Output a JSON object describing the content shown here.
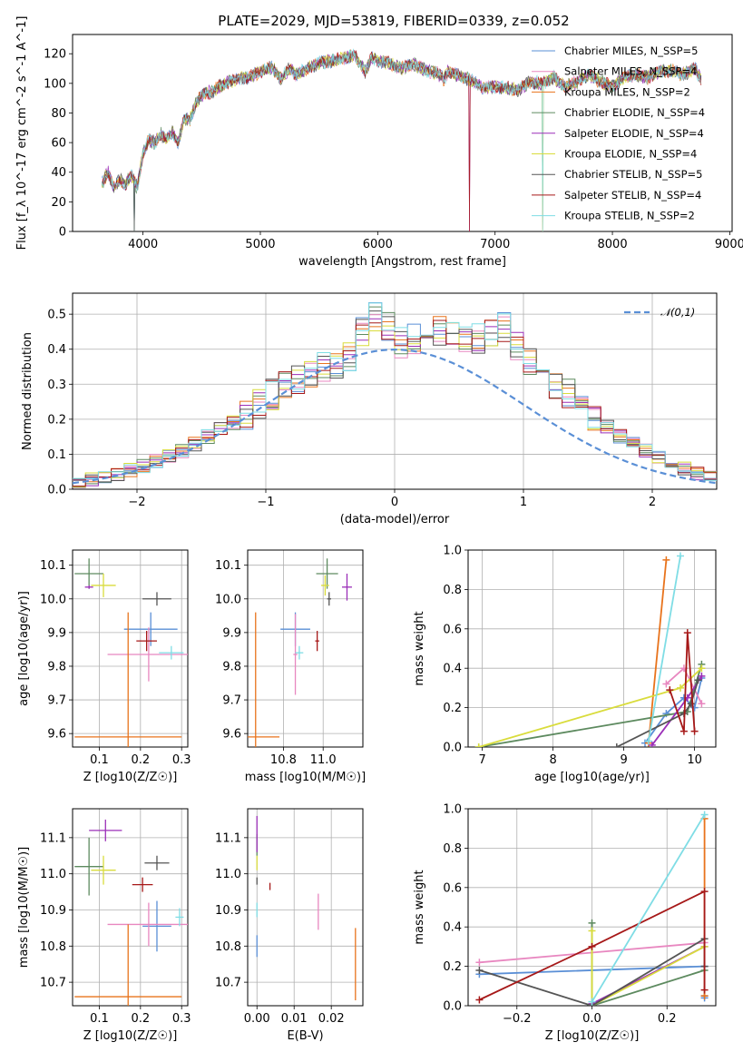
{
  "figure": {
    "title": "PLATE=2029, MJD=53819, FIBERID=0339, z=0.052"
  },
  "series_colors": {
    "Chabrier MILES": "#5a8fd6",
    "Salpeter MILES": "#e887c0",
    "Kroupa MILES": "#e8731c",
    "Chabrier ELODIE": "#5d8a5f",
    "Salpeter ELODIE": "#9b2fb8",
    "Kroupa ELODIE": "#d9dc3c",
    "Chabrier STELIB": "#555555",
    "Salpeter STELIB": "#a61818",
    "Kroupa STELIB": "#7fdde5"
  },
  "chart_data": [
    {
      "id": "spectrum",
      "type": "line",
      "title": "PLATE=2029, MJD=53819, FIBERID=0339, z=0.052",
      "xlabel": "wavelength [Angstrom, rest frame]",
      "ylabel": "Flux [f_λ 10^-17 erg cm^-2 s^-1 A^-1]",
      "xlim": [
        3400,
        9020
      ],
      "ylim": [
        0,
        133
      ],
      "xticks": [
        4000,
        5000,
        6000,
        7000,
        8000,
        9000
      ],
      "yticks": [
        0,
        20,
        40,
        60,
        80,
        100,
        120
      ],
      "grid": false,
      "legend_position": "top-right",
      "legend": [
        {
          "label": "Chabrier MILES, N_SSP=5"
        },
        {
          "label": "Salpeter MILES, N_SSP=4"
        },
        {
          "label": "Kroupa MILES, N_SSP=2"
        },
        {
          "label": "Chabrier ELODIE, N_SSP=4"
        },
        {
          "label": "Salpeter ELODIE, N_SSP=4"
        },
        {
          "label": "Kroupa ELODIE, N_SSP=4"
        },
        {
          "label": "Chabrier STELIB, N_SSP=5"
        },
        {
          "label": "Salpeter STELIB, N_SSP=4"
        },
        {
          "label": "Kroupa STELIB, N_SSP=2"
        }
      ],
      "continuum": {
        "x": [
          3650,
          3700,
          3750,
          3800,
          3850,
          3900,
          3950,
          4000,
          4050,
          4100,
          4150,
          4200,
          4250,
          4300,
          4350,
          4400,
          4450,
          4500,
          4600,
          4700,
          4800,
          4900,
          5000,
          5100,
          5175,
          5250,
          5300,
          5400,
          5500,
          5600,
          5700,
          5800,
          5893,
          5950,
          6000,
          6100,
          6200,
          6300,
          6400,
          6500,
          6563,
          6600,
          6700,
          6800,
          6900,
          7000,
          7100,
          7200,
          7300,
          7400,
          7500,
          7600,
          7700,
          7800,
          7900,
          8000,
          8100,
          8200,
          8300,
          8400,
          8500,
          8600,
          8700,
          8760
        ],
        "y": [
          32,
          40,
          30,
          35,
          32,
          38,
          30,
          52,
          62,
          60,
          66,
          62,
          67,
          60,
          76,
          76,
          86,
          92,
          95,
          100,
          103,
          104,
          108,
          111,
          103,
          110,
          106,
          110,
          114,
          115,
          117,
          119,
          108,
          117,
          115,
          114,
          110,
          113,
          109,
          107,
          103,
          108,
          105,
          102,
          97,
          98,
          97,
          96,
          101,
          100,
          104,
          98,
          101,
          106,
          101,
          98,
          104,
          106,
          104,
          108,
          109,
          106,
          110,
          103
        ]
      },
      "dips": [
        {
          "x": 3925,
          "y": 0
        },
        {
          "x": 6780,
          "y": 0
        },
        {
          "x": 7405,
          "y": 0
        }
      ]
    },
    {
      "id": "residuals",
      "type": "line",
      "xlabel": "(data-model)/error",
      "ylabel": "Normed distribution",
      "xlim": [
        -2.5,
        2.5
      ],
      "ylim": [
        0,
        0.56
      ],
      "xticks": [
        -2,
        -1,
        0,
        1,
        2
      ],
      "yticks": [
        0.0,
        0.1,
        0.2,
        0.3,
        0.4,
        0.5
      ],
      "grid": true,
      "legend_position": "top-right",
      "reference_curve": {
        "label": "𝒩(0,1)",
        "mean": 0,
        "sigma": 1
      },
      "histogram": {
        "bin_width": 0.1,
        "x_start": -2.5,
        "values": [
          0.025,
          0.03,
          0.035,
          0.045,
          0.055,
          0.065,
          0.08,
          0.095,
          0.11,
          0.13,
          0.15,
          0.17,
          0.19,
          0.21,
          0.24,
          0.27,
          0.29,
          0.31,
          0.33,
          0.35,
          0.36,
          0.38,
          0.45,
          0.49,
          0.46,
          0.42,
          0.43,
          0.46,
          0.45,
          0.44,
          0.42,
          0.43,
          0.44,
          0.46,
          0.41,
          0.37,
          0.33,
          0.3,
          0.27,
          0.24,
          0.21,
          0.18,
          0.15,
          0.13,
          0.11,
          0.09,
          0.075,
          0.06,
          0.045,
          0.035
        ]
      }
    },
    {
      "id": "z-age",
      "type": "scatter",
      "xlabel": "Z [log10(Z/Z☉)]",
      "ylabel": "age [log10(age/yr)]",
      "xlim": [
        0.035,
        0.315
      ],
      "ylim": [
        9.56,
        10.145
      ],
      "xticks": [
        0.1,
        0.2,
        0.3
      ],
      "yticks": [
        9.6,
        9.7,
        9.8,
        9.9,
        10.0,
        10.1
      ],
      "grid": true,
      "points": [
        {
          "series": "Chabrier MILES",
          "x": 0.225,
          "y": 9.91,
          "xerr": 0.065,
          "yerr": 0.05
        },
        {
          "series": "Salpeter MILES",
          "x": 0.22,
          "y": 9.835,
          "xerr": 0.1,
          "yerr": 0.08
        },
        {
          "series": "Kroupa MILES",
          "x": 0.17,
          "y": 9.59,
          "xerr": 0.13,
          "yerr": 0.37
        },
        {
          "series": "Chabrier ELODIE",
          "x": 0.075,
          "y": 10.075,
          "xerr": 0.035,
          "yerr": 0.045
        },
        {
          "series": "Salpeter ELODIE",
          "x": 0.075,
          "y": 10.035,
          "xerr": 0.01,
          "yerr": 0.005
        },
        {
          "series": "Kroupa ELODIE",
          "x": 0.11,
          "y": 10.04,
          "xerr": 0.03,
          "yerr": 0.035
        },
        {
          "series": "Chabrier STELIB",
          "x": 0.24,
          "y": 10.0,
          "xerr": 0.035,
          "yerr": 0.02
        },
        {
          "series": "Salpeter STELIB",
          "x": 0.215,
          "y": 9.875,
          "xerr": 0.025,
          "yerr": 0.03
        },
        {
          "series": "Kroupa STELIB",
          "x": 0.275,
          "y": 9.84,
          "xerr": 0.03,
          "yerr": 0.02
        }
      ]
    },
    {
      "id": "mass-age",
      "type": "scatter",
      "xlabel": "mass [log10(M/M☉)]",
      "ylabel": "",
      "xlim": [
        10.62,
        11.2
      ],
      "ylim": [
        9.56,
        10.145
      ],
      "xticks": [
        10.8,
        11.0
      ],
      "yticks": [
        9.6,
        9.7,
        9.8,
        9.9,
        10.0,
        10.1
      ],
      "grid": true,
      "points": [
        {
          "series": "Chabrier MILES",
          "x": 10.86,
          "y": 9.91,
          "xerr": 0.075,
          "yerr": 0.05
        },
        {
          "series": "Salpeter MILES",
          "x": 10.86,
          "y": 9.835,
          "xerr": 0.01,
          "yerr": 0.12
        },
        {
          "series": "Kroupa MILES",
          "x": 10.66,
          "y": 9.59,
          "xerr": 0.12,
          "yerr": 0.37
        },
        {
          "series": "Chabrier ELODIE",
          "x": 11.02,
          "y": 10.075,
          "xerr": 0.055,
          "yerr": 0.045
        },
        {
          "series": "Salpeter ELODIE",
          "x": 11.12,
          "y": 10.035,
          "xerr": 0.025,
          "yerr": 0.04
        },
        {
          "series": "Kroupa ELODIE",
          "x": 11.01,
          "y": 10.04,
          "xerr": 0.02,
          "yerr": 0.03
        },
        {
          "series": "Chabrier STELIB",
          "x": 11.03,
          "y": 10.0,
          "xerr": 0.01,
          "yerr": 0.02
        },
        {
          "series": "Salpeter STELIB",
          "x": 10.97,
          "y": 9.875,
          "xerr": 0.01,
          "yerr": 0.03
        },
        {
          "series": "Kroupa STELIB",
          "x": 10.88,
          "y": 9.84,
          "xerr": 0.02,
          "yerr": 0.02
        }
      ]
    },
    {
      "id": "age-weight",
      "type": "line",
      "xlabel": "age [log10(age/yr)]",
      "ylabel": "mass weight",
      "xlim": [
        6.8,
        10.3
      ],
      "ylim": [
        0,
        1.0
      ],
      "xticks": [
        7,
        8,
        9,
        10
      ],
      "yticks": [
        0.0,
        0.2,
        0.4,
        0.6,
        0.8,
        1.0
      ],
      "grid": true,
      "series": [
        {
          "name": "Chabrier MILES",
          "x": [
            9.3,
            9.6,
            9.85,
            10.0,
            10.1
          ],
          "y": [
            0.02,
            0.17,
            0.25,
            0.2,
            0.35
          ]
        },
        {
          "name": "Salpeter MILES",
          "x": [
            9.6,
            9.85,
            10.1
          ],
          "y": [
            0.32,
            0.4,
            0.22
          ]
        },
        {
          "name": "Kroupa MILES",
          "x": [
            9.35,
            9.6
          ],
          "y": [
            0.02,
            0.95
          ]
        },
        {
          "name": "Chabrier ELODIE",
          "x": [
            6.95,
            9.9,
            10.1
          ],
          "y": [
            0.0,
            0.18,
            0.42
          ]
        },
        {
          "name": "Salpeter ELODIE",
          "x": [
            9.4,
            9.9,
            10.1
          ],
          "y": [
            0.01,
            0.25,
            0.36
          ]
        },
        {
          "name": "Kroupa ELODIE",
          "x": [
            6.95,
            9.8,
            10.1
          ],
          "y": [
            0.0,
            0.3,
            0.4
          ]
        },
        {
          "name": "Chabrier STELIB",
          "x": [
            8.9,
            9.85,
            9.95,
            10.05
          ],
          "y": [
            0.0,
            0.17,
            0.22,
            0.34
          ]
        },
        {
          "name": "Salpeter STELIB",
          "x": [
            9.65,
            9.85,
            9.9,
            10.0
          ],
          "y": [
            0.29,
            0.08,
            0.58,
            0.08
          ]
        },
        {
          "name": "Kroupa STELIB",
          "x": [
            9.35,
            9.8
          ],
          "y": [
            0.03,
            0.97
          ]
        }
      ]
    },
    {
      "id": "z-mass",
      "type": "scatter",
      "xlabel": "Z [log10(Z/Z☉)]",
      "ylabel": "mass [log10(M/M☉)]",
      "xlim": [
        0.035,
        0.315
      ],
      "ylim": [
        10.635,
        11.18
      ],
      "xticks": [
        0.1,
        0.2,
        0.3
      ],
      "yticks": [
        10.7,
        10.8,
        10.9,
        11.0,
        11.1
      ],
      "grid": true,
      "points": [
        {
          "series": "Chabrier MILES",
          "x": 0.24,
          "y": 10.855,
          "xerr": 0.035,
          "yerr": 0.07
        },
        {
          "series": "Salpeter MILES",
          "x": 0.22,
          "y": 10.86,
          "xerr": 0.1,
          "yerr": 0.06
        },
        {
          "series": "Kroupa MILES",
          "x": 0.17,
          "y": 10.66,
          "xerr": 0.13,
          "yerr": 0.2
        },
        {
          "series": "Chabrier ELODIE",
          "x": 0.075,
          "y": 11.02,
          "xerr": 0.035,
          "yerr": 0.08
        },
        {
          "series": "Salpeter ELODIE",
          "x": 0.115,
          "y": 11.12,
          "xerr": 0.04,
          "yerr": 0.03
        },
        {
          "series": "Kroupa ELODIE",
          "x": 0.11,
          "y": 11.01,
          "xerr": 0.03,
          "yerr": 0.04
        },
        {
          "series": "Chabrier STELIB",
          "x": 0.24,
          "y": 11.03,
          "xerr": 0.03,
          "yerr": 0.02
        },
        {
          "series": "Salpeter STELIB",
          "x": 0.205,
          "y": 10.97,
          "xerr": 0.025,
          "yerr": 0.02
        },
        {
          "series": "Kroupa STELIB",
          "x": 0.295,
          "y": 10.88,
          "xerr": 0.01,
          "yerr": 0.025
        }
      ]
    },
    {
      "id": "ebv-mass",
      "type": "scatter",
      "xlabel": "E(B-V)",
      "ylabel": "",
      "xlim": [
        -0.0025,
        0.0285
      ],
      "ylim": [
        10.635,
        11.18
      ],
      "xticks": [
        0.0,
        0.01,
        0.02
      ],
      "yticks": [
        10.7,
        10.8,
        10.9,
        11.0,
        11.1
      ],
      "grid": true,
      "points": [
        {
          "series": "Chabrier MILES",
          "x": 0.0,
          "y": 10.8,
          "xerr": 0,
          "yerr": 0.03
        },
        {
          "series": "Salpeter MILES",
          "x": 0.0165,
          "y": 10.895,
          "xerr": 0,
          "yerr": 0.05
        },
        {
          "series": "Kroupa MILES",
          "x": 0.0265,
          "y": 10.75,
          "xerr": 0,
          "yerr": 0.1
        },
        {
          "series": "Chabrier ELODIE",
          "x": 0.0,
          "y": 11.08,
          "xerr": 0,
          "yerr": 0.03
        },
        {
          "series": "Salpeter ELODIE",
          "x": 0.0,
          "y": 11.11,
          "xerr": 0,
          "yerr": 0.05
        },
        {
          "series": "Kroupa ELODIE",
          "x": 0.0,
          "y": 11.03,
          "xerr": 0,
          "yerr": 0.02
        },
        {
          "series": "Chabrier STELIB",
          "x": 0.0,
          "y": 10.98,
          "xerr": 0,
          "yerr": 0.01
        },
        {
          "series": "Salpeter STELIB",
          "x": 0.0035,
          "y": 10.965,
          "xerr": 0,
          "yerr": 0.01
        },
        {
          "series": "Kroupa STELIB",
          "x": 0.0,
          "y": 10.9,
          "xerr": 0,
          "yerr": 0.02
        }
      ]
    },
    {
      "id": "z-weight",
      "type": "line",
      "xlabel": "Z [log10(Z/Z☉)]",
      "ylabel": "mass weight",
      "xlim": [
        -0.33,
        0.33
      ],
      "ylim": [
        0,
        1.0
      ],
      "xticks": [
        -0.2,
        0.0,
        0.2
      ],
      "yticks": [
        0.0,
        0.2,
        0.4,
        0.6,
        0.8,
        1.0
      ],
      "grid": true,
      "series": [
        {
          "name": "Chabrier MILES",
          "x": [
            -0.3,
            0.3,
            0.3,
            0.3
          ],
          "y": [
            0.16,
            0.2,
            0.04,
            0.05
          ]
        },
        {
          "name": "Salpeter MILES",
          "x": [
            -0.3,
            0.3
          ],
          "y": [
            0.22,
            0.32
          ]
        },
        {
          "name": "Kroupa MILES",
          "x": [
            0.3,
            0.3
          ],
          "y": [
            0.05,
            0.95
          ]
        },
        {
          "name": "Chabrier ELODIE",
          "x": [
            0.0,
            0.0,
            0.3
          ],
          "y": [
            0.42,
            0.0,
            0.18
          ]
        },
        {
          "name": "Salpeter ELODIE",
          "x": [
            0.0,
            0.3
          ],
          "y": [
            0.01,
            0.3
          ]
        },
        {
          "name": "Kroupa ELODIE",
          "x": [
            0.0,
            0.0,
            0.3
          ],
          "y": [
            0.38,
            0.0,
            0.3
          ]
        },
        {
          "name": "Chabrier STELIB",
          "x": [
            -0.3,
            0.0,
            0.3,
            0.3
          ],
          "y": [
            0.18,
            0.0,
            0.34,
            0.2
          ]
        },
        {
          "name": "Salpeter STELIB",
          "x": [
            -0.3,
            0.0,
            0.3,
            0.3
          ],
          "y": [
            0.03,
            0.3,
            0.58,
            0.08
          ]
        },
        {
          "name": "Kroupa STELIB",
          "x": [
            0.0,
            0.3
          ],
          "y": [
            0.02,
            0.97
          ]
        }
      ]
    }
  ]
}
